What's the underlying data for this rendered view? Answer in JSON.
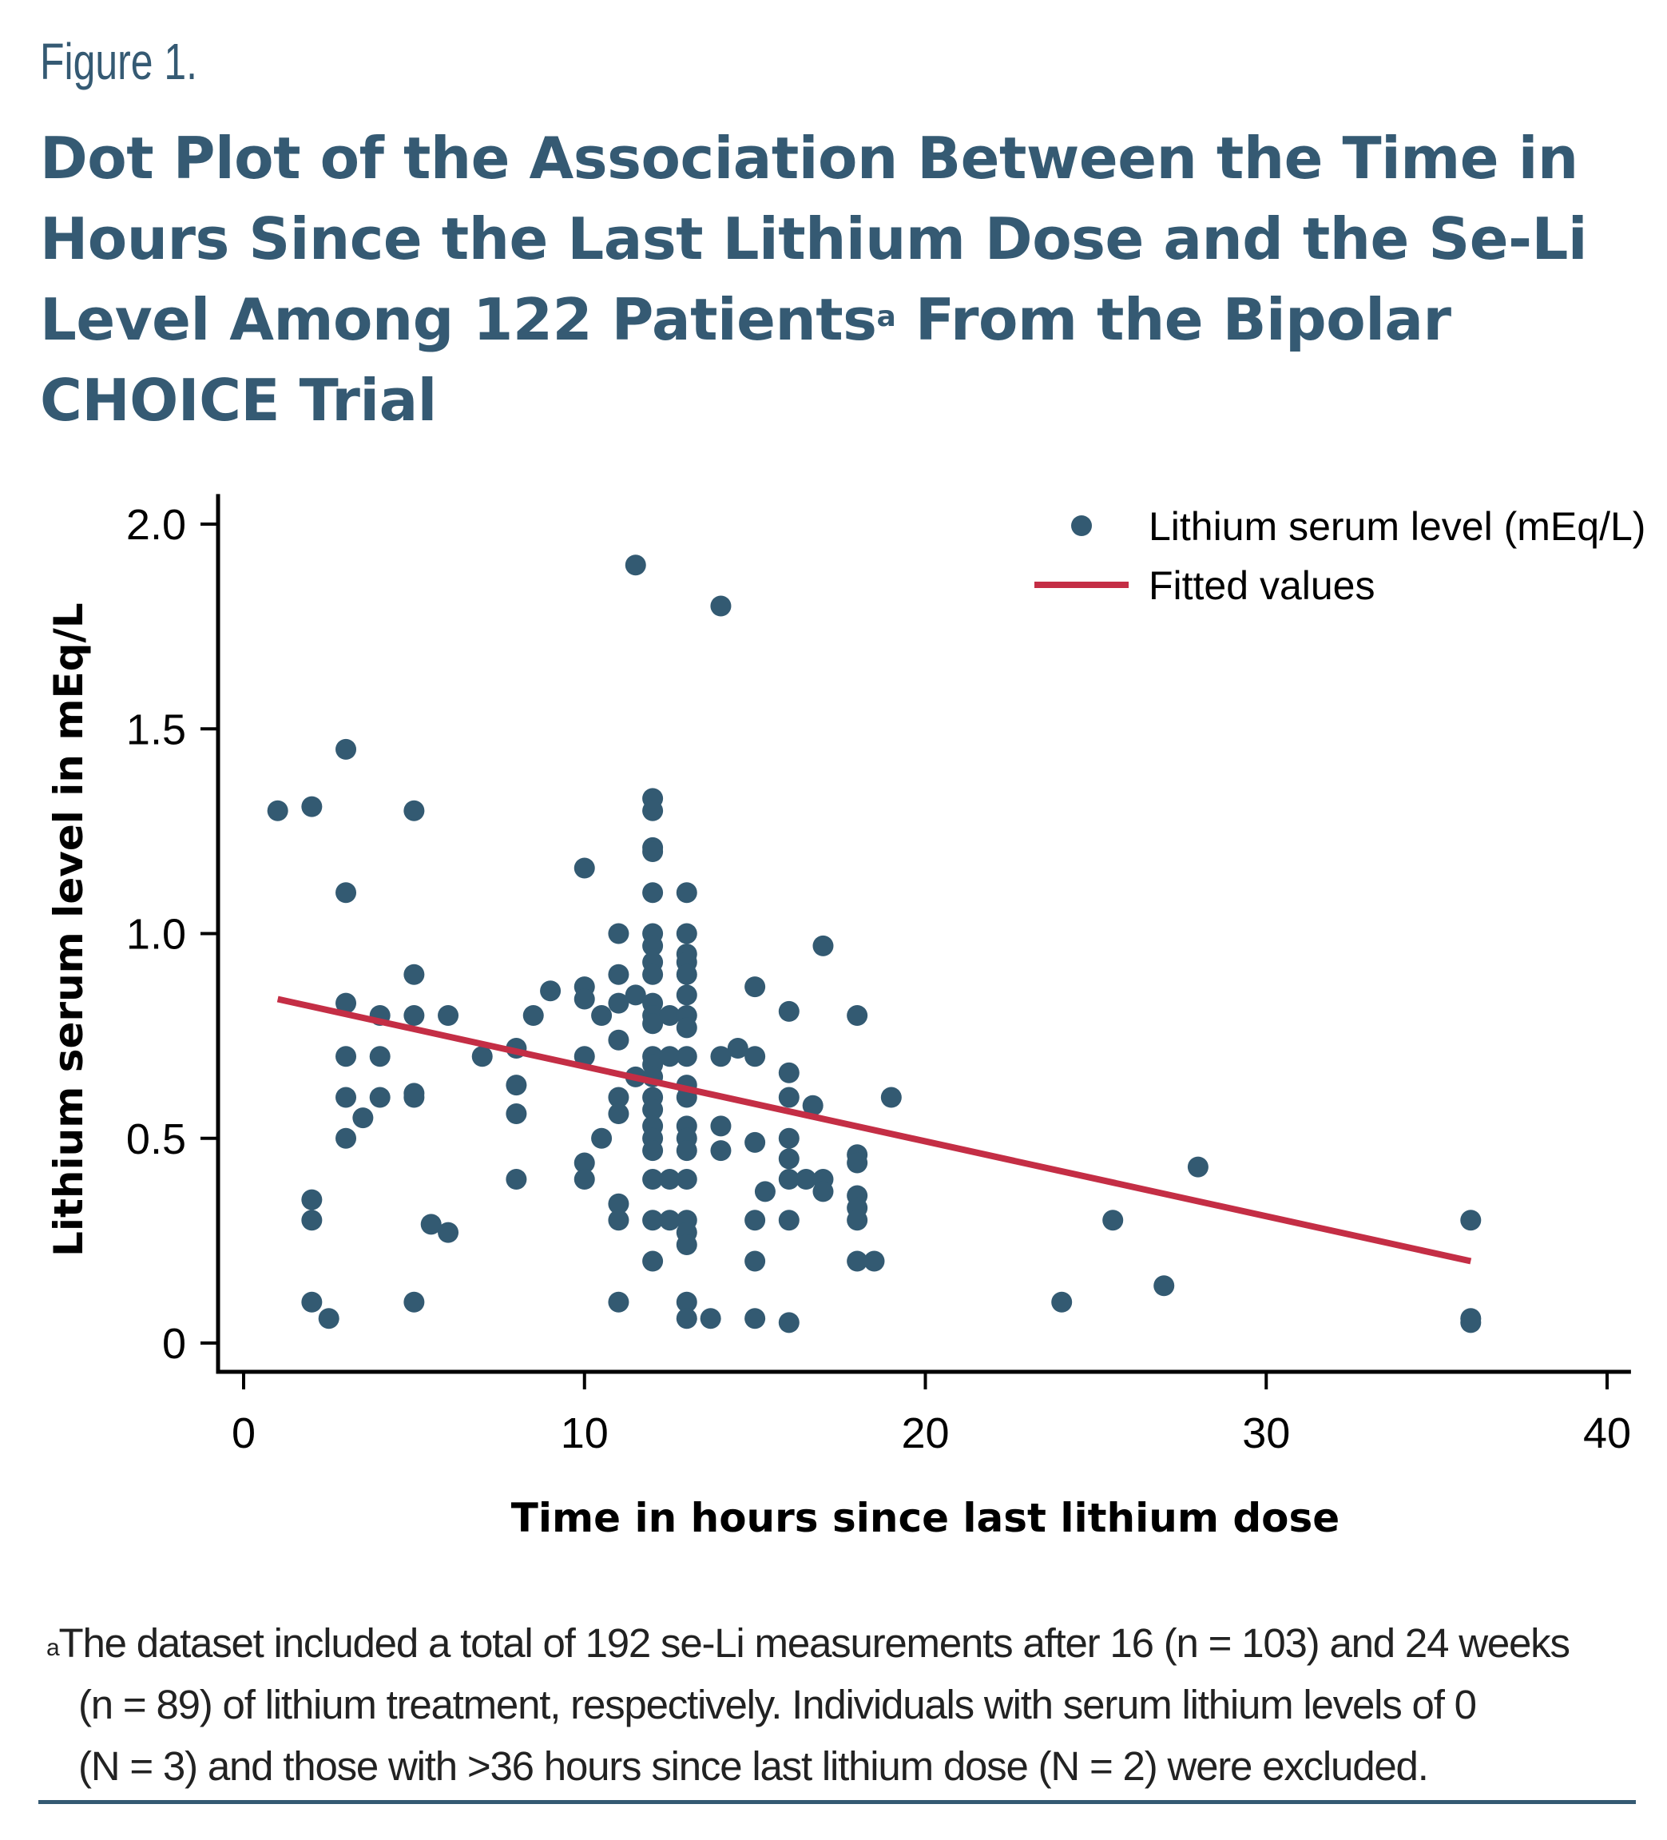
{
  "figure": {
    "label": "Figure 1.",
    "title": "Dot Plot of the Association Between the Time in Hours Since the Last Lithium Dose and the Se-Li Level Among 122 Patients",
    "title_lines": [
      "Dot Plot of the Association Between the Time in",
      "Hours Since the Last Lithium Dose and the Se-Li",
      "Level Among 122 Patients",
      "CHOICE Trial"
    ],
    "title_superscript": "a",
    "title_line3_suffix": " From the Bipolar",
    "footnote_marker": "a",
    "footnote_lines": [
      "The dataset included a total of 192 se-Li measurements after 16 (n = 103) and 24 weeks",
      "(n = 89) of lithium treatment, respectively. Individuals with serum lithium levels of 0",
      "(N = 3) and those with >36 hours since last lithium dose (N = 2) were excluded."
    ]
  },
  "colors": {
    "title": "#355a73",
    "points": "#335a72",
    "fit_line": "#c42e45",
    "axis": "#000000",
    "rule": "#355a73"
  },
  "chart_data": {
    "type": "scatter",
    "title": "",
    "xlabel": "Time in hours since last lithium dose",
    "ylabel": "Lithium serum level in mEq/L",
    "xlim": [
      -0.7,
      40.7
    ],
    "ylim": [
      -0.065,
      2.05
    ],
    "xticks": [
      0,
      10,
      20,
      30,
      40
    ],
    "xtick_labels": [
      "0",
      "10",
      "20",
      "30",
      "40"
    ],
    "yticks": [
      0,
      0.5,
      1.0,
      1.5,
      2.0
    ],
    "ytick_labels": [
      "0",
      "0.5",
      "1.0",
      "1.5",
      "2.0"
    ],
    "grid": false,
    "legend": {
      "position": "top-right",
      "entries": [
        {
          "label": "Lithium serum level (mEq/L)",
          "marker": "dot"
        },
        {
          "label": "Fitted values",
          "marker": "line"
        }
      ]
    },
    "series": [
      {
        "name": "Lithium serum level (mEq/L)",
        "kind": "scatter",
        "points": [
          [
            1,
            1.3
          ],
          [
            2,
            1.31
          ],
          [
            2,
            0.35
          ],
          [
            2,
            0.3
          ],
          [
            2,
            0.1
          ],
          [
            2.5,
            0.06
          ],
          [
            3,
            1.45
          ],
          [
            3,
            1.1
          ],
          [
            3,
            0.83
          ],
          [
            3,
            0.7
          ],
          [
            3,
            0.6
          ],
          [
            3,
            0.5
          ],
          [
            3.5,
            0.55
          ],
          [
            4,
            0.8
          ],
          [
            4,
            0.7
          ],
          [
            4,
            0.6
          ],
          [
            5,
            1.3
          ],
          [
            5,
            0.9
          ],
          [
            5,
            0.8
          ],
          [
            5,
            0.61
          ],
          [
            5,
            0.6
          ],
          [
            5,
            0.1
          ],
          [
            5.5,
            0.29
          ],
          [
            6,
            0.8
          ],
          [
            6,
            0.27
          ],
          [
            7,
            0.7
          ],
          [
            8,
            0.72
          ],
          [
            8,
            0.63
          ],
          [
            8,
            0.56
          ],
          [
            8,
            0.4
          ],
          [
            8.5,
            0.8
          ],
          [
            9,
            0.86
          ],
          [
            10,
            1.16
          ],
          [
            10,
            0.87
          ],
          [
            10,
            0.84
          ],
          [
            10,
            0.7
          ],
          [
            10,
            0.44
          ],
          [
            10,
            0.4
          ],
          [
            10.5,
            0.8
          ],
          [
            10.5,
            0.5
          ],
          [
            11,
            1.0
          ],
          [
            11,
            0.9
          ],
          [
            11,
            0.83
          ],
          [
            11,
            0.74
          ],
          [
            11,
            0.6
          ],
          [
            11,
            0.56
          ],
          [
            11,
            0.34
          ],
          [
            11,
            0.3
          ],
          [
            11,
            0.1
          ],
          [
            11.5,
            1.9
          ],
          [
            11.5,
            0.85
          ],
          [
            11.5,
            0.65
          ],
          [
            12,
            1.33
          ],
          [
            12,
            1.3
          ],
          [
            12,
            1.21
          ],
          [
            12,
            1.2
          ],
          [
            12,
            1.1
          ],
          [
            12,
            1.0
          ],
          [
            12,
            0.97
          ],
          [
            12,
            0.93
          ],
          [
            12,
            0.9
          ],
          [
            12,
            0.83
          ],
          [
            12,
            0.8
          ],
          [
            12,
            0.78
          ],
          [
            12,
            0.7
          ],
          [
            12,
            0.68
          ],
          [
            12,
            0.65
          ],
          [
            12,
            0.6
          ],
          [
            12,
            0.57
          ],
          [
            12,
            0.53
          ],
          [
            12,
            0.5
          ],
          [
            12,
            0.47
          ],
          [
            12,
            0.4
          ],
          [
            12,
            0.3
          ],
          [
            12,
            0.2
          ],
          [
            12.5,
            0.8
          ],
          [
            12.5,
            0.7
          ],
          [
            12.5,
            0.4
          ],
          [
            12.5,
            0.3
          ],
          [
            13,
            1.1
          ],
          [
            13,
            1.0
          ],
          [
            13,
            0.95
          ],
          [
            13,
            0.93
          ],
          [
            13,
            0.9
          ],
          [
            13,
            0.85
          ],
          [
            13,
            0.8
          ],
          [
            13,
            0.77
          ],
          [
            13,
            0.7
          ],
          [
            13,
            0.63
          ],
          [
            13,
            0.6
          ],
          [
            13,
            0.53
          ],
          [
            13,
            0.5
          ],
          [
            13,
            0.47
          ],
          [
            13,
            0.4
          ],
          [
            13,
            0.3
          ],
          [
            13,
            0.27
          ],
          [
            13,
            0.24
          ],
          [
            13,
            0.1
          ],
          [
            13,
            0.06
          ],
          [
            13.7,
            0.06
          ],
          [
            14,
            1.8
          ],
          [
            14,
            0.7
          ],
          [
            14,
            0.53
          ],
          [
            14,
            0.47
          ],
          [
            14.5,
            0.72
          ],
          [
            15,
            0.87
          ],
          [
            15,
            0.7
          ],
          [
            15,
            0.49
          ],
          [
            15,
            0.3
          ],
          [
            15,
            0.2
          ],
          [
            15,
            0.06
          ],
          [
            15.3,
            0.37
          ],
          [
            16,
            0.81
          ],
          [
            16,
            0.66
          ],
          [
            16,
            0.6
          ],
          [
            16,
            0.5
          ],
          [
            16,
            0.45
          ],
          [
            16,
            0.4
          ],
          [
            16,
            0.3
          ],
          [
            16,
            0.05
          ],
          [
            16.5,
            0.4
          ],
          [
            16.7,
            0.58
          ],
          [
            17,
            0.97
          ],
          [
            17,
            0.4
          ],
          [
            17,
            0.37
          ],
          [
            18,
            0.8
          ],
          [
            18,
            0.46
          ],
          [
            18,
            0.44
          ],
          [
            18,
            0.36
          ],
          [
            18,
            0.33
          ],
          [
            18,
            0.3
          ],
          [
            18,
            0.2
          ],
          [
            18.5,
            0.2
          ],
          [
            19,
            0.6
          ],
          [
            24,
            0.1
          ],
          [
            25.5,
            0.3
          ],
          [
            27,
            0.14
          ],
          [
            28,
            0.43
          ],
          [
            36,
            0.3
          ],
          [
            36,
            0.06
          ],
          [
            36,
            0.05
          ]
        ]
      },
      {
        "name": "Fitted values",
        "kind": "line",
        "points": [
          [
            1,
            0.84
          ],
          [
            36,
            0.2
          ]
        ]
      }
    ]
  }
}
